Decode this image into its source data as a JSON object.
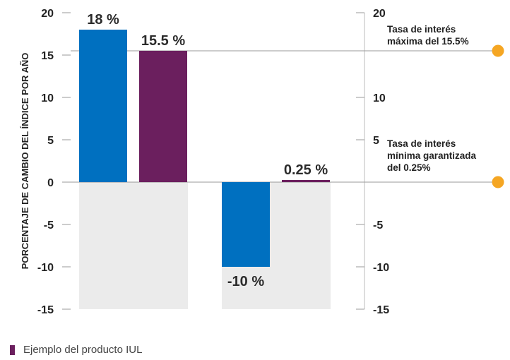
{
  "chart_data": {
    "type": "bar",
    "ylabel": "PORCENTAJE DE CAMBIO DEL ÍNDICE POR AÑO",
    "ylim": [
      -15,
      20
    ],
    "yticks_left": [
      "20",
      "15",
      "10",
      "5",
      "0",
      "-5",
      "-10",
      "-15"
    ],
    "yticks_left_values": [
      20,
      15,
      10,
      5,
      0,
      -5,
      -10,
      -15
    ],
    "yticks_right": [
      "20",
      "10",
      "5",
      "-5",
      "-10",
      "-15"
    ],
    "yticks_right_values": [
      20,
      10,
      5,
      -5,
      -10,
      -15
    ],
    "groups": [
      {
        "bars": [
          {
            "value": 18,
            "label": "18 %",
            "color": "#0070c0"
          },
          {
            "value": 15.5,
            "label": "15.5 %",
            "color": "#6b1f5e"
          }
        ]
      },
      {
        "bars": [
          {
            "value": -10,
            "label": "-10 %",
            "color": "#0070c0"
          },
          {
            "value": 0.25,
            "label": "0.25 %",
            "color": "#6b1f5e"
          }
        ]
      }
    ],
    "reference_lines": [
      {
        "value": 15.5,
        "lines": [
          "Tasa de interés",
          "máxima del 15.5%"
        ],
        "marker_color": "#f5a623"
      },
      {
        "value": 0,
        "lines": [
          "Tasa de interés",
          "mínima garantizada",
          "del 0.25%"
        ],
        "marker_color": "#f5a623"
      }
    ],
    "legend": [
      {
        "label": "Ejemplo del producto IUL",
        "color": "#6b1f5e"
      }
    ],
    "background_color": "#ebebeb",
    "grid": false
  }
}
